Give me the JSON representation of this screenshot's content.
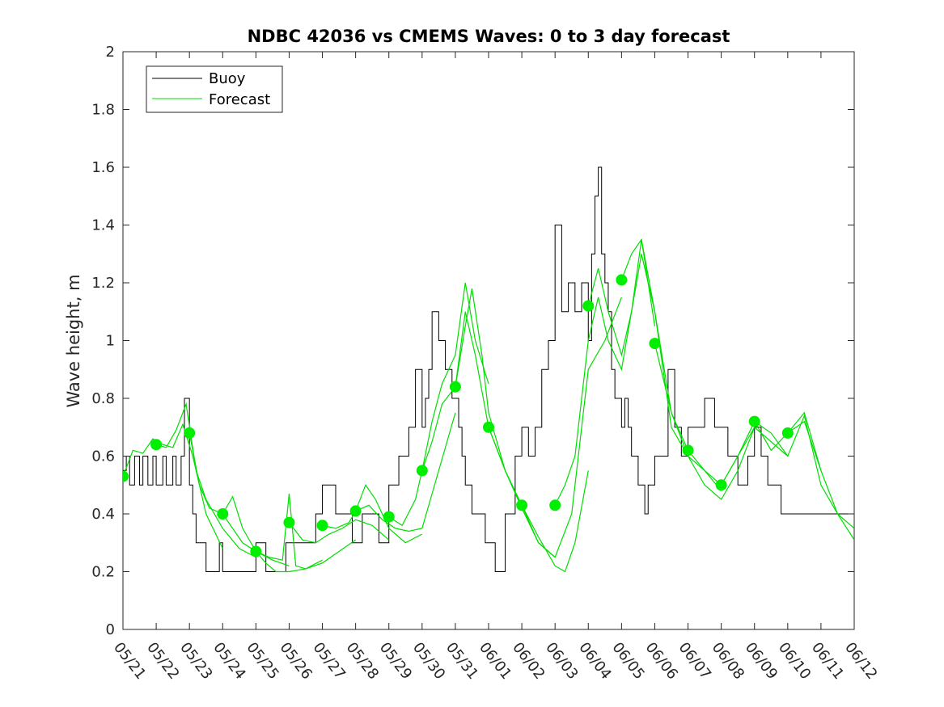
{
  "chart_data": {
    "type": "line",
    "title": "NDBC 42036 vs CMEMS Waves: 0 to 3 day forecast",
    "xlabel": "",
    "ylabel": "Wave height, m",
    "ylim": [
      0,
      2
    ],
    "yticks": [
      0,
      0.2,
      0.4,
      0.6,
      0.8,
      1,
      1.2,
      1.4,
      1.6,
      1.8,
      2
    ],
    "ytick_labels": [
      "0",
      "0.2",
      "0.4",
      "0.6",
      "0.8",
      "1",
      "1.2",
      "1.4",
      "1.6",
      "1.8",
      "2"
    ],
    "xticks": [
      "05/21",
      "05/22",
      "05/23",
      "05/24",
      "05/25",
      "05/26",
      "05/27",
      "05/28",
      "05/29",
      "05/30",
      "05/31",
      "06/01",
      "06/02",
      "06/03",
      "06/04",
      "06/05",
      "06/06",
      "06/07",
      "06/08",
      "06/09",
      "06/10",
      "06/11",
      "06/12"
    ],
    "grid": false,
    "legend": {
      "location": "top-left",
      "entries": [
        {
          "label": "Buoy",
          "color": "#000000"
        },
        {
          "label": "Forecast",
          "color": "#00dd00"
        }
      ]
    },
    "series": [
      {
        "name": "Buoy",
        "color": "#000000",
        "style": "step",
        "x": [
          0,
          0.1,
          0.2,
          0.35,
          0.5,
          0.6,
          0.75,
          0.9,
          1.0,
          1.2,
          1.3,
          1.5,
          1.6,
          1.75,
          1.85,
          2.0,
          2.1,
          2.2,
          2.3,
          2.5,
          2.7,
          2.9,
          3.0,
          3.2,
          3.5,
          3.7,
          4.0,
          4.3,
          4.6,
          4.9,
          5.0,
          5.3,
          5.5,
          5.8,
          6.0,
          6.4,
          6.7,
          6.9,
          7.0,
          7.2,
          7.5,
          7.7,
          8.0,
          8.3,
          8.6,
          8.8,
          9.0,
          9.1,
          9.2,
          9.3,
          9.5,
          9.7,
          9.9,
          10.0,
          10.1,
          10.2,
          10.3,
          10.5,
          10.7,
          10.9,
          11.0,
          11.2,
          11.5,
          11.8,
          12.0,
          12.2,
          12.4,
          12.6,
          12.8,
          13.0,
          13.2,
          13.4,
          13.6,
          13.8,
          14.0,
          14.1,
          14.2,
          14.3,
          14.4,
          14.5,
          14.6,
          14.7,
          14.8,
          15.0,
          15.1,
          15.2,
          15.3,
          15.4,
          15.5,
          15.6,
          15.7,
          15.8,
          16.0,
          16.2,
          16.4,
          16.6,
          16.8,
          17.0,
          17.2,
          17.5,
          17.8,
          18.0,
          18.2,
          18.5,
          18.8,
          19.0,
          19.2,
          19.4,
          19.6,
          19.8,
          20.0,
          20.2,
          20.4,
          20.6,
          20.8,
          21.0,
          21.5,
          22.0
        ],
        "values": [
          0.55,
          0.6,
          0.5,
          0.6,
          0.5,
          0.6,
          0.5,
          0.6,
          0.5,
          0.6,
          0.5,
          0.6,
          0.5,
          0.6,
          0.8,
          0.5,
          0.4,
          0.3,
          0.3,
          0.2,
          0.2,
          0.3,
          0.2,
          0.2,
          0.2,
          0.2,
          0.3,
          0.2,
          0.2,
          0.3,
          0.3,
          0.3,
          0.3,
          0.4,
          0.5,
          0.4,
          0.4,
          0.3,
          0.3,
          0.4,
          0.4,
          0.3,
          0.5,
          0.6,
          0.7,
          0.9,
          0.7,
          0.8,
          0.9,
          1.1,
          1.0,
          0.9,
          0.8,
          0.8,
          0.7,
          0.6,
          0.5,
          0.4,
          0.4,
          0.3,
          0.3,
          0.2,
          0.4,
          0.6,
          0.7,
          0.6,
          0.7,
          0.9,
          1.0,
          1.4,
          1.1,
          1.2,
          1.1,
          1.2,
          1.0,
          1.3,
          1.5,
          1.6,
          1.3,
          1.2,
          1.1,
          0.9,
          0.8,
          0.7,
          0.8,
          0.7,
          0.6,
          0.6,
          0.5,
          0.5,
          0.4,
          0.5,
          0.6,
          0.6,
          0.9,
          0.7,
          0.6,
          0.7,
          0.7,
          0.8,
          0.7,
          0.7,
          0.6,
          0.5,
          0.6,
          0.7,
          0.6,
          0.5,
          0.5,
          0.4,
          0.4,
          0.4,
          0.4,
          0.4,
          0.4,
          0.4,
          0.4,
          0.4
        ]
      },
      {
        "name": "Forecast",
        "color": "#00dd00",
        "x": [
          0,
          0.3,
          0.6,
          0.9,
          1.2,
          1.5,
          1.8,
          2.1,
          2.5,
          3.0
        ],
        "values": [
          0.53,
          0.62,
          0.61,
          0.66,
          0.64,
          0.63,
          0.71,
          0.6,
          0.4,
          0.28
        ]
      },
      {
        "name": "Forecast",
        "color": "#00dd00",
        "x": [
          1.0,
          1.3,
          1.6,
          1.9,
          2.2,
          2.5,
          3.0,
          3.5,
          4.0
        ],
        "values": [
          0.64,
          0.63,
          0.69,
          0.78,
          0.55,
          0.45,
          0.35,
          0.28,
          0.25
        ]
      },
      {
        "name": "Forecast",
        "color": "#00dd00",
        "x": [
          2.0,
          2.3,
          2.6,
          3.0,
          3.3,
          3.6,
          4.0,
          4.5,
          5.0
        ],
        "values": [
          0.68,
          0.5,
          0.42,
          0.4,
          0.46,
          0.35,
          0.27,
          0.24,
          0.22
        ]
      },
      {
        "name": "Forecast",
        "color": "#00dd00",
        "x": [
          3.0,
          3.3,
          3.6,
          4.0,
          4.3,
          4.6,
          5.0,
          5.5,
          6.0
        ],
        "values": [
          0.4,
          0.35,
          0.3,
          0.27,
          0.23,
          0.2,
          0.2,
          0.21,
          0.24
        ]
      },
      {
        "name": "Forecast",
        "color": "#00dd00",
        "x": [
          4.0,
          4.4,
          4.8,
          5.0,
          5.2,
          5.5,
          6.0,
          6.5,
          7.0
        ],
        "values": [
          0.27,
          0.25,
          0.24,
          0.47,
          0.22,
          0.21,
          0.23,
          0.27,
          0.31
        ]
      },
      {
        "name": "Forecast",
        "color": "#00dd00",
        "x": [
          5.0,
          5.4,
          5.8,
          6.2,
          6.6,
          7.0,
          7.5,
          8.0
        ],
        "values": [
          0.37,
          0.31,
          0.3,
          0.33,
          0.35,
          0.38,
          0.36,
          0.31
        ]
      },
      {
        "name": "Forecast",
        "color": "#00dd00",
        "x": [
          6.0,
          6.4,
          6.8,
          7.0,
          7.3,
          7.6,
          8.0,
          8.5,
          9.0
        ],
        "values": [
          0.36,
          0.35,
          0.37,
          0.41,
          0.5,
          0.45,
          0.35,
          0.3,
          0.33
        ]
      },
      {
        "name": "Forecast",
        "color": "#00dd00",
        "x": [
          7.0,
          7.4,
          7.8,
          8.2,
          8.6,
          9.0,
          9.5,
          10.0
        ],
        "values": [
          0.41,
          0.43,
          0.38,
          0.35,
          0.34,
          0.35,
          0.55,
          0.75
        ]
      },
      {
        "name": "Forecast",
        "color": "#00dd00",
        "x": [
          8.0,
          8.4,
          8.8,
          9.0,
          9.3,
          9.6,
          10.0,
          10.3,
          10.6,
          11.0
        ],
        "values": [
          0.39,
          0.36,
          0.45,
          0.55,
          0.72,
          0.85,
          0.95,
          1.2,
          1.0,
          0.85
        ]
      },
      {
        "name": "Forecast",
        "color": "#00dd00",
        "x": [
          9.0,
          9.3,
          9.6,
          10.0,
          10.3,
          10.5,
          10.8,
          11.0,
          11.5,
          12.0
        ],
        "values": [
          0.55,
          0.65,
          0.78,
          0.84,
          1.05,
          1.18,
          0.95,
          0.75,
          0.55,
          0.42
        ]
      },
      {
        "name": "Forecast",
        "color": "#00dd00",
        "x": [
          10.0,
          10.3,
          10.6,
          11.0,
          11.5,
          12.0,
          12.5,
          13.0
        ],
        "values": [
          0.84,
          1.1,
          0.95,
          0.7,
          0.55,
          0.42,
          0.3,
          0.25
        ]
      },
      {
        "name": "Forecast",
        "color": "#00dd00",
        "x": [
          11.0,
          11.5,
          12.0,
          12.5,
          13.0,
          13.3,
          13.6,
          14.0
        ],
        "values": [
          0.7,
          0.55,
          0.43,
          0.32,
          0.22,
          0.2,
          0.3,
          0.55
        ]
      },
      {
        "name": "Forecast",
        "color": "#00dd00",
        "x": [
          12.0,
          12.5,
          13.0,
          13.5,
          14.0,
          14.5,
          15.0
        ],
        "values": [
          0.43,
          0.3,
          0.25,
          0.4,
          0.9,
          1.0,
          1.15
        ]
      },
      {
        "name": "Forecast",
        "color": "#00dd00",
        "x": [
          13.0,
          13.3,
          13.6,
          14.0,
          14.3,
          14.6,
          15.0,
          15.3,
          15.6,
          16.0
        ],
        "values": [
          0.43,
          0.5,
          0.6,
          1.0,
          1.15,
          1.0,
          0.9,
          1.1,
          1.35,
          1.05
        ]
      },
      {
        "name": "Forecast",
        "color": "#00dd00",
        "x": [
          14.0,
          14.3,
          14.6,
          15.0,
          15.3,
          15.6,
          16.0,
          16.5,
          17.0
        ],
        "values": [
          1.12,
          1.25,
          1.1,
          0.95,
          1.1,
          1.3,
          1.1,
          0.75,
          0.62
        ]
      },
      {
        "name": "Forecast",
        "color": "#00dd00",
        "x": [
          15.0,
          15.3,
          15.6,
          16.0,
          16.5,
          17.0,
          17.5,
          18.0
        ],
        "values": [
          1.21,
          1.3,
          1.35,
          1.1,
          0.7,
          0.6,
          0.55,
          0.48
        ]
      },
      {
        "name": "Forecast",
        "color": "#00dd00",
        "x": [
          16.0,
          16.5,
          17.0,
          17.5,
          18.0,
          18.5,
          19.0
        ],
        "values": [
          0.99,
          0.75,
          0.6,
          0.5,
          0.45,
          0.55,
          0.7
        ]
      },
      {
        "name": "Forecast",
        "color": "#00dd00",
        "x": [
          17.0,
          17.5,
          18.0,
          18.5,
          19.0,
          19.5,
          20.0
        ],
        "values": [
          0.62,
          0.55,
          0.5,
          0.6,
          0.7,
          0.65,
          0.6
        ]
      },
      {
        "name": "Forecast",
        "color": "#00dd00",
        "x": [
          18.0,
          18.5,
          19.0,
          19.5,
          20.0,
          20.5,
          21.0
        ],
        "values": [
          0.5,
          0.6,
          0.72,
          0.62,
          0.68,
          0.75,
          0.55
        ]
      },
      {
        "name": "Forecast",
        "color": "#00dd00",
        "x": [
          19.0,
          19.5,
          20.0,
          20.5,
          21.0,
          21.5,
          22.0
        ],
        "values": [
          0.72,
          0.68,
          0.6,
          0.74,
          0.5,
          0.4,
          0.35
        ]
      },
      {
        "name": "Forecast",
        "color": "#00dd00",
        "x": [
          20.0,
          20.5,
          21.0,
          21.5,
          22.0
        ],
        "values": [
          0.68,
          0.72,
          0.55,
          0.4,
          0.31
        ]
      }
    ],
    "markers": {
      "color": "#00ee00",
      "x": [
        0,
        1,
        2,
        3,
        4,
        5,
        6,
        7,
        8,
        9,
        10,
        11,
        12,
        13,
        14,
        15,
        16,
        17,
        18,
        19,
        20
      ],
      "values": [
        0.53,
        0.64,
        0.68,
        0.4,
        0.27,
        0.37,
        0.36,
        0.41,
        0.39,
        0.55,
        0.84,
        0.7,
        0.43,
        0.43,
        1.12,
        1.21,
        0.99,
        0.62,
        0.5,
        0.72,
        0.68
      ]
    }
  }
}
